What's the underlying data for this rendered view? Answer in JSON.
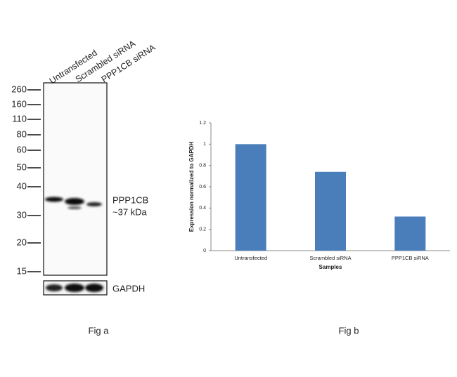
{
  "blot": {
    "lanes": [
      "Untransfected",
      "Scrambled siRNA",
      "PPP1CB siRNA"
    ],
    "markers": [
      260,
      160,
      110,
      80,
      60,
      50,
      40,
      30,
      20,
      15
    ],
    "band_label": "PPP1CB",
    "band_size": "~37 kDa",
    "loading_control": "GAPDH",
    "caption": "Fig a"
  },
  "chart_data": {
    "type": "bar",
    "ylabel": "Expression normalized to GAPDH",
    "xlabel": "Samples",
    "categories": [
      "Untransfected",
      "Scrambled siRNA",
      "PPP1CB siRNA"
    ],
    "values": [
      1,
      0.74,
      0.32
    ],
    "color": "#4a7ebb",
    "ylim": [
      0,
      1.2
    ],
    "yticks": [
      0,
      0.2,
      0.4,
      0.6,
      0.8,
      1,
      1.2
    ],
    "caption": "Fig b"
  }
}
